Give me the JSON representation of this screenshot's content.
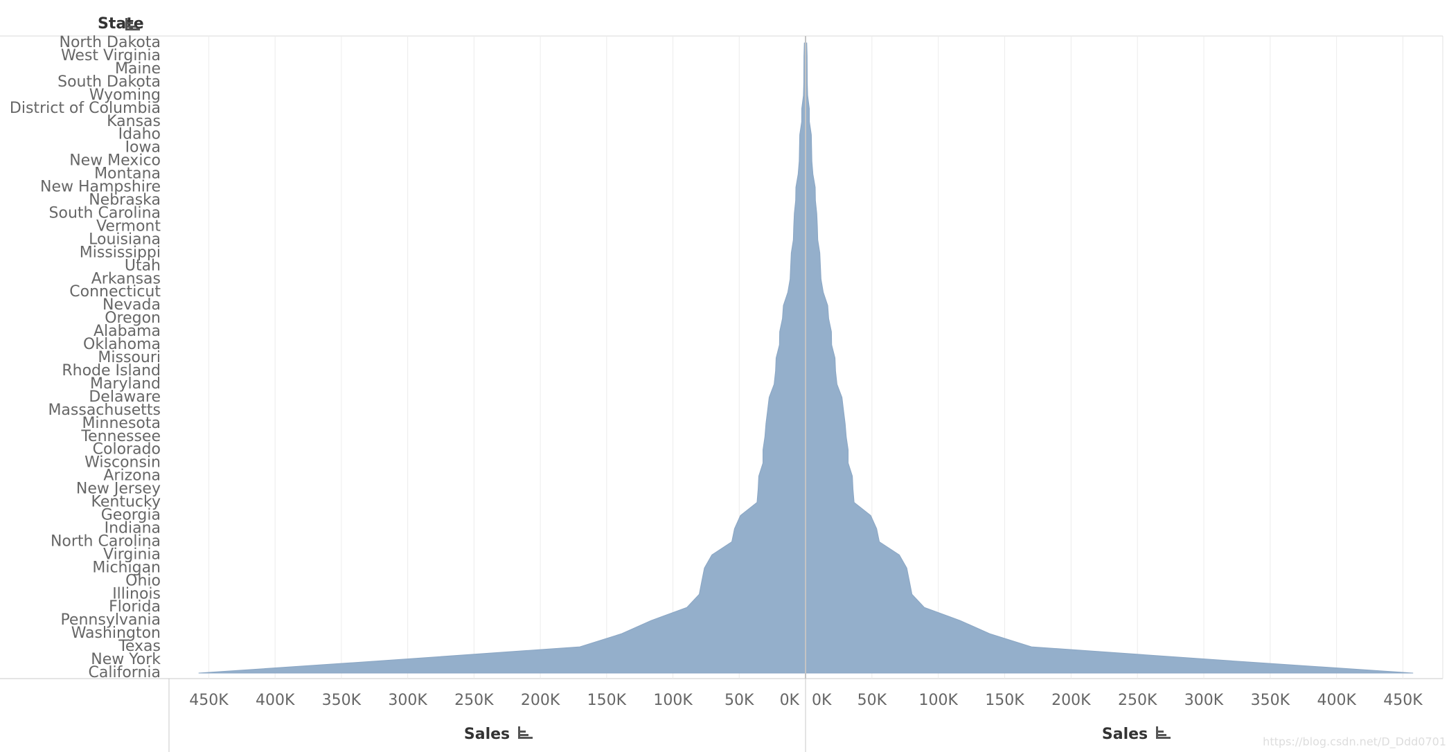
{
  "chart_data": {
    "type": "butterfly-area",
    "title": "State",
    "xlabels": [
      "Sales",
      "Sales"
    ],
    "watermark": "https://blog.csdn.net/D_Ddd0701",
    "color": "#92adca",
    "categories": [
      "North Dakota",
      "West Virginia",
      "Maine",
      "South Dakota",
      "Wyoming",
      "District of Columbia",
      "Kansas",
      "Idaho",
      "Iowa",
      "New Mexico",
      "Montana",
      "New Hampshire",
      "Nebraska",
      "South Carolina",
      "Vermont",
      "Louisiana",
      "Mississippi",
      "Utah",
      "Arkansas",
      "Connecticut",
      "Nevada",
      "Oregon",
      "Alabama",
      "Oklahoma",
      "Missouri",
      "Rhode Island",
      "Maryland",
      "Delaware",
      "Massachusetts",
      "Minnesota",
      "Tennessee",
      "Colorado",
      "Wisconsin",
      "Arizona",
      "New Jersey",
      "Kentucky",
      "Georgia",
      "Indiana",
      "North Carolina",
      "Virginia",
      "Michigan",
      "Ohio",
      "Illinois",
      "Florida",
      "Pennsylvania",
      "Washington",
      "Texas",
      "New York",
      "California"
    ],
    "values": [
      920,
      1210,
      1271,
      1316,
      1603,
      2865,
      2914,
      4382,
      4580,
      4784,
      5589,
      7293,
      7465,
      8482,
      8929,
      9217,
      10771,
      11220,
      11678,
      13384,
      16729,
      17431,
      19511,
      19683,
      22205,
      22628,
      23706,
      27451,
      28634,
      29863,
      30662,
      32108,
      32115,
      35282,
      35764,
      36592,
      49096,
      53555,
      55603,
      70637,
      76270,
      78258,
      80166,
      89474,
      116512,
      138641,
      170188,
      310876,
      457688
    ],
    "xlim": [
      0,
      480000
    ],
    "xticks": [
      {
        "value": 0,
        "label": "0K"
      },
      {
        "value": 50000,
        "label": "50K"
      },
      {
        "value": 100000,
        "label": "100K"
      },
      {
        "value": 150000,
        "label": "150K"
      },
      {
        "value": 200000,
        "label": "200K"
      },
      {
        "value": 250000,
        "label": "250K"
      },
      {
        "value": 300000,
        "label": "300K"
      },
      {
        "value": 350000,
        "label": "350K"
      },
      {
        "value": 400000,
        "label": "400K"
      },
      {
        "value": 450000,
        "label": "450K"
      }
    ],
    "grid": true
  }
}
